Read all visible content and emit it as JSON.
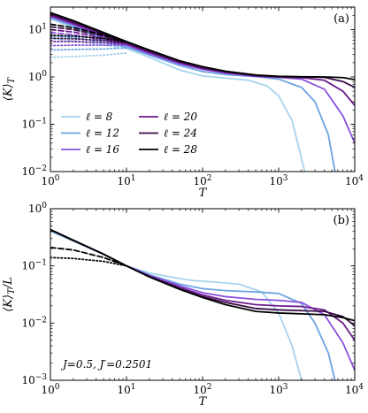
{
  "chart_data": [
    {
      "type": "line",
      "panel_label": "(a)",
      "xlabel": "T",
      "ylabel": "⟨K⟩_T",
      "x_scale": "log",
      "y_scale": "log",
      "xlim": [
        1,
        10000
      ],
      "ylim": [
        0.01,
        30
      ],
      "x_ticks": [
        {
          "value": 1,
          "label": "10^0"
        },
        {
          "value": 10,
          "label": "10^1"
        },
        {
          "value": 100,
          "label": "10^2"
        },
        {
          "value": 1000,
          "label": "10^3"
        },
        {
          "value": 10000,
          "label": "10^4"
        }
      ],
      "y_ticks": [
        {
          "value": 0.01,
          "label": "10^-2"
        },
        {
          "value": 0.1,
          "label": "10^-1"
        },
        {
          "value": 1,
          "label": "10^0"
        },
        {
          "value": 10,
          "label": "10^1"
        }
      ],
      "legend": {
        "placement": "lower-left",
        "entries": [
          "ℓ = 8",
          "ℓ = 12",
          "ℓ = 16",
          "ℓ = 20",
          "ℓ = 24",
          "ℓ = 28"
        ]
      },
      "series": [
        {
          "name": "ℓ = 8",
          "color": "#a7d3ec",
          "style": "solid",
          "x": [
            1,
            2,
            5,
            10,
            20,
            50,
            100,
            200,
            400,
            700,
            1000,
            1500,
            2200
          ],
          "y": [
            17,
            11,
            6.2,
            4,
            2.6,
            1.4,
            1.05,
            0.95,
            0.85,
            0.65,
            0.4,
            0.12,
            0.01
          ]
        },
        {
          "name": "ℓ = 8",
          "color": "#a7d3ec",
          "style": "dashed",
          "x": [
            1,
            2,
            5,
            10
          ],
          "y": [
            6.5,
            5.8,
            4.8,
            4
          ]
        },
        {
          "name": "ℓ = 8",
          "color": "#a7d3ec",
          "style": "dotted",
          "x": [
            1,
            2,
            5,
            10
          ],
          "y": [
            2.6,
            2.7,
            2.9,
            3.2
          ]
        },
        {
          "name": "ℓ = 12",
          "color": "#6ba3e3",
          "style": "solid",
          "x": [
            1,
            2,
            5,
            10,
            20,
            50,
            100,
            200,
            500,
            1000,
            2000,
            3000,
            4500,
            5500
          ],
          "y": [
            18,
            12,
            6.6,
            4.3,
            2.9,
            1.75,
            1.3,
            1.12,
            1.02,
            0.9,
            0.6,
            0.3,
            0.06,
            0.01
          ]
        },
        {
          "name": "ℓ = 12",
          "color": "#6ba3e3",
          "style": "dashed",
          "x": [
            1,
            2,
            5,
            10
          ],
          "y": [
            7.5,
            6.8,
            5.4,
            4.3
          ]
        },
        {
          "name": "ℓ = 12",
          "color": "#6ba3e3",
          "style": "dotted",
          "x": [
            1,
            2,
            5,
            10
          ],
          "y": [
            3.7,
            3.8,
            3.9,
            4.1
          ]
        },
        {
          "name": "ℓ = 16",
          "color": "#8a52de",
          "style": "solid",
          "x": [
            1,
            2,
            5,
            10,
            20,
            50,
            100,
            200,
            500,
            1000,
            2000,
            4000,
            7000,
            10000
          ],
          "y": [
            19,
            12.8,
            7.2,
            4.7,
            3.1,
            1.9,
            1.45,
            1.2,
            1.03,
            0.98,
            0.9,
            0.55,
            0.15,
            0.04
          ]
        },
        {
          "name": "ℓ = 16",
          "color": "#8a52de",
          "style": "dashed",
          "x": [
            1,
            2,
            5,
            10
          ],
          "y": [
            8.7,
            7.8,
            6,
            4.7
          ]
        },
        {
          "name": "ℓ = 16",
          "color": "#8a52de",
          "style": "dotted",
          "x": [
            1,
            2,
            5,
            10
          ],
          "y": [
            4.6,
            4.7,
            4.7,
            4.7
          ]
        },
        {
          "name": "ℓ = 20",
          "color": "#6d1c8e",
          "style": "solid",
          "x": [
            1,
            2,
            5,
            10,
            20,
            50,
            100,
            200,
            500,
            1000,
            2000,
            4000,
            7000,
            10000
          ],
          "y": [
            20,
            13.5,
            7.7,
            5,
            3.3,
            2,
            1.5,
            1.25,
            1.05,
            1,
            0.97,
            0.85,
            0.5,
            0.25
          ]
        },
        {
          "name": "ℓ = 20",
          "color": "#6d1c8e",
          "style": "dashed",
          "x": [
            1,
            2,
            5,
            10
          ],
          "y": [
            10,
            8.9,
            6.6,
            5
          ]
        },
        {
          "name": "ℓ = 20",
          "color": "#6d1c8e",
          "style": "dotted",
          "x": [
            1,
            2,
            5,
            10
          ],
          "y": [
            5.6,
            5.6,
            5.3,
            5
          ]
        },
        {
          "name": "ℓ = 24",
          "color": "#3a0d47",
          "style": "solid",
          "x": [
            1,
            2,
            5,
            10,
            20,
            50,
            100,
            200,
            500,
            1000,
            2000,
            4000,
            7000,
            10000
          ],
          "y": [
            21.5,
            14.5,
            8.2,
            5.3,
            3.5,
            2.1,
            1.6,
            1.3,
            1.08,
            1.02,
            1,
            0.98,
            0.8,
            0.6
          ]
        },
        {
          "name": "ℓ = 24",
          "color": "#3a0d47",
          "style": "dashed",
          "x": [
            1,
            2,
            5,
            10
          ],
          "y": [
            11.5,
            10,
            7.3,
            5.3
          ]
        },
        {
          "name": "ℓ = 24",
          "color": "#3a0d47",
          "style": "dotted",
          "x": [
            1,
            2,
            5,
            10
          ],
          "y": [
            6.6,
            6.4,
            5.9,
            5.3
          ]
        },
        {
          "name": "ℓ = 28",
          "color": "#000000",
          "style": "solid",
          "x": [
            1,
            2,
            5,
            10,
            20,
            50,
            100,
            200,
            500,
            1000,
            2000,
            4000,
            7000,
            10000
          ],
          "y": [
            23,
            15.5,
            8.7,
            5.6,
            3.7,
            2.2,
            1.65,
            1.32,
            1.1,
            1.03,
            1.01,
            1,
            0.97,
            0.88
          ]
        },
        {
          "name": "ℓ = 28",
          "color": "#000000",
          "style": "dashed",
          "x": [
            1,
            2,
            5,
            10
          ],
          "y": [
            13,
            11,
            7.8,
            5.6
          ]
        },
        {
          "name": "ℓ = 28",
          "color": "#000000",
          "style": "dotted",
          "x": [
            1,
            2,
            5,
            10
          ],
          "y": [
            7.6,
            7.3,
            6.5,
            5.6
          ]
        }
      ]
    },
    {
      "type": "line",
      "panel_label": "(b)",
      "xlabel": "T",
      "ylabel": "⟨K⟩_T/L",
      "x_scale": "log",
      "y_scale": "log",
      "xlim": [
        1,
        10000
      ],
      "ylim": [
        0.001,
        1
      ],
      "x_ticks": [
        {
          "value": 1,
          "label": "10^0"
        },
        {
          "value": 10,
          "label": "10^1"
        },
        {
          "value": 100,
          "label": "10^2"
        },
        {
          "value": 1000,
          "label": "10^3"
        },
        {
          "value": 10000,
          "label": "10^4"
        }
      ],
      "y_ticks": [
        {
          "value": 0.001,
          "label": "10^-3"
        },
        {
          "value": 0.01,
          "label": "10^-2"
        },
        {
          "value": 0.1,
          "label": "10^-1"
        },
        {
          "value": 1,
          "label": "10^0"
        }
      ],
      "annotation": "J=0.5,  J′=0.2501",
      "series": [
        {
          "name": "ℓ = 8",
          "color": "#a7d3ec",
          "style": "solid",
          "x": [
            1,
            2,
            5,
            10,
            20,
            50,
            80,
            150,
            300,
            600,
            1000,
            1500,
            2000
          ],
          "y": [
            0.4,
            0.27,
            0.16,
            0.1,
            0.075,
            0.06,
            0.055,
            0.052,
            0.048,
            0.035,
            0.015,
            0.004,
            0.001
          ]
        },
        {
          "name": "ℓ = 12",
          "color": "#6ba3e3",
          "style": "solid",
          "x": [
            1,
            2,
            5,
            10,
            20,
            50,
            100,
            200,
            500,
            1000,
            2000,
            3000,
            4500,
            5500
          ],
          "y": [
            0.42,
            0.28,
            0.16,
            0.1,
            0.07,
            0.048,
            0.04,
            0.037,
            0.035,
            0.033,
            0.022,
            0.01,
            0.003,
            0.001
          ]
        },
        {
          "name": "ℓ = 16",
          "color": "#8a52de",
          "style": "solid",
          "x": [
            1,
            2,
            5,
            10,
            20,
            50,
            100,
            200,
            500,
            1000,
            2000,
            4000,
            7000,
            10000
          ],
          "y": [
            0.43,
            0.28,
            0.16,
            0.1,
            0.068,
            0.045,
            0.034,
            0.029,
            0.026,
            0.025,
            0.023,
            0.014,
            0.0045,
            0.0015
          ]
        },
        {
          "name": "ℓ = 20",
          "color": "#6d1c8e",
          "style": "solid",
          "x": [
            1,
            2,
            5,
            10,
            20,
            50,
            100,
            200,
            500,
            1000,
            2000,
            4000,
            7000,
            10000
          ],
          "y": [
            0.43,
            0.28,
            0.16,
            0.1,
            0.066,
            0.042,
            0.031,
            0.025,
            0.021,
            0.02,
            0.0195,
            0.017,
            0.01,
            0.005
          ]
        },
        {
          "name": "ℓ = 24",
          "color": "#3a0d47",
          "style": "solid",
          "x": [
            1,
            2,
            5,
            10,
            20,
            50,
            100,
            200,
            500,
            1000,
            2000,
            4000,
            7000,
            10000
          ],
          "y": [
            0.43,
            0.28,
            0.16,
            0.1,
            0.065,
            0.04,
            0.029,
            0.023,
            0.018,
            0.017,
            0.0165,
            0.016,
            0.013,
            0.009
          ]
        },
        {
          "name": "ℓ = 28",
          "color": "#000000",
          "style": "solid",
          "x": [
            1,
            2,
            5,
            10,
            20,
            50,
            100,
            200,
            500,
            1000,
            2000,
            4000,
            7000,
            10000
          ],
          "y": [
            0.43,
            0.28,
            0.16,
            0.1,
            0.064,
            0.039,
            0.028,
            0.021,
            0.016,
            0.015,
            0.0145,
            0.014,
            0.0125,
            0.011
          ]
        },
        {
          "name": "ℓ = 28",
          "color": "#000000",
          "style": "dashed",
          "x": [
            1,
            2,
            5,
            10
          ],
          "y": [
            0.21,
            0.19,
            0.14,
            0.1
          ]
        },
        {
          "name": "ℓ = 28",
          "color": "#000000",
          "style": "dotted",
          "x": [
            1,
            2,
            5,
            10
          ],
          "y": [
            0.14,
            0.135,
            0.12,
            0.1
          ]
        }
      ]
    }
  ]
}
